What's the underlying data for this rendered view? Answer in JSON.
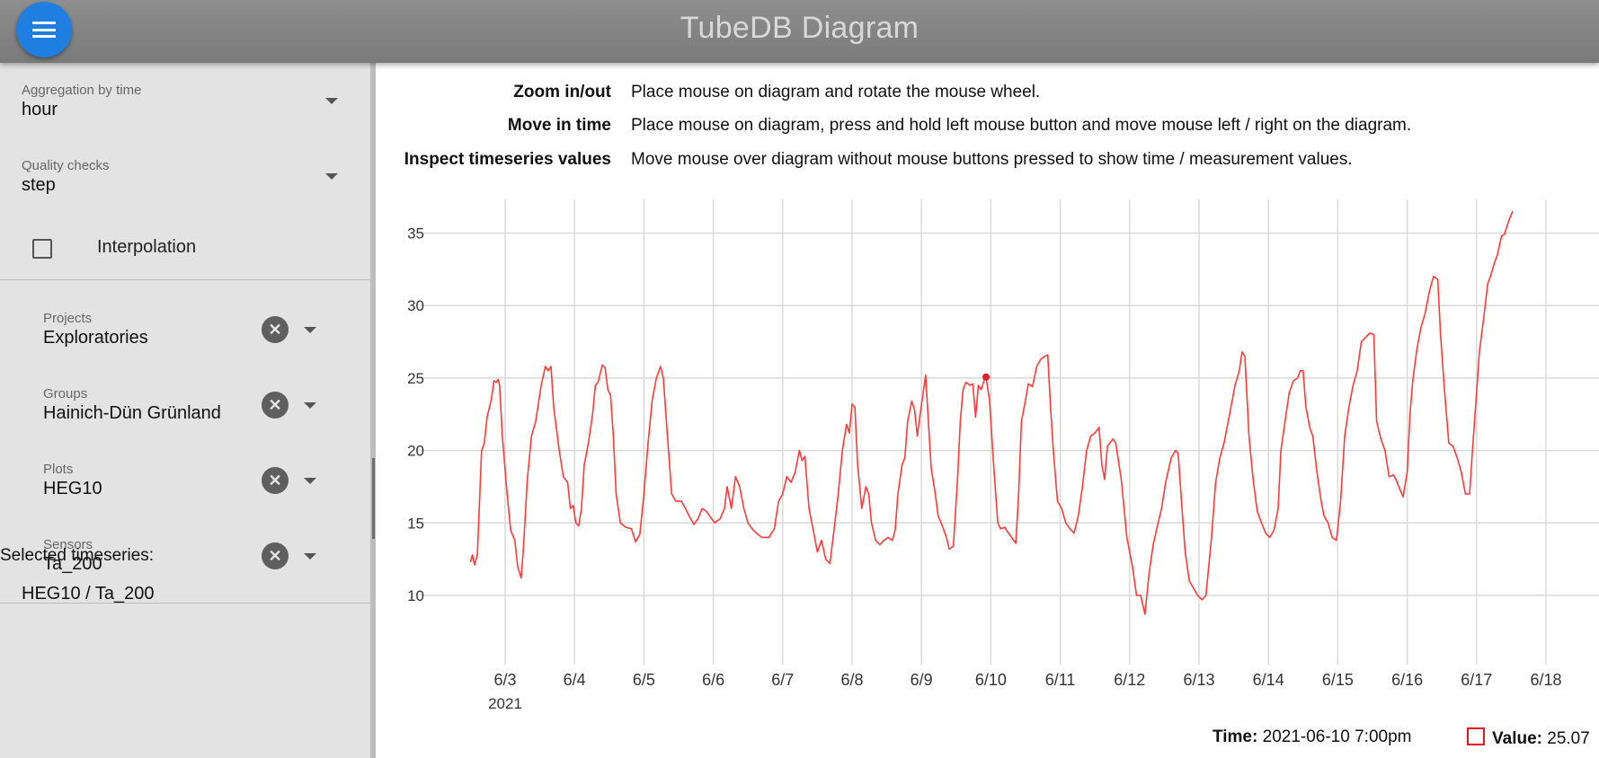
{
  "header": {
    "title": "TubeDB Diagram"
  },
  "sidebar": {
    "aggregation": {
      "label": "Aggregation by time",
      "value": "hour"
    },
    "quality": {
      "label": "Quality checks",
      "value": "step"
    },
    "interpolation": {
      "label": "Interpolation",
      "checked": false
    },
    "projects": {
      "label": "Projects",
      "value": "Exploratories"
    },
    "groups": {
      "label": "Groups",
      "value": "Hainich-Dün Grünland"
    },
    "plots": {
      "label": "Plots",
      "value": "HEG10"
    },
    "sensors": {
      "label": "Sensors",
      "value": "Ta_200"
    },
    "selected_title": "Selected timeseries:",
    "selected_items": [
      "HEG10 / Ta_200"
    ]
  },
  "help": [
    {
      "key": "Zoom in/out",
      "value": "Place mouse on diagram and rotate the mouse wheel."
    },
    {
      "key": "Move in time",
      "value": "Place mouse on diagram, press and hold left mouse button and move mouse left / right on the diagram."
    },
    {
      "key": "Inspect timeseries values",
      "value": "Move mouse over diagram without mouse buttons pressed to show time / measurement values."
    }
  ],
  "status": {
    "time_label": "Time:",
    "time_value": "2021-06-10 7:00pm",
    "value_label": "Value:",
    "value_value": "25.07"
  },
  "colors": {
    "accent": "#1e7fe0",
    "series": "#ff3b3b",
    "header": "#808080",
    "sidebar": "#e3e3e3"
  },
  "chart_data": {
    "type": "line",
    "x_labels": [
      "6/3",
      "6/4",
      "6/5",
      "6/6",
      "6/7",
      "6/8",
      "6/9",
      "6/10",
      "6/11",
      "6/12",
      "6/13",
      "6/14",
      "6/15",
      "6/16",
      "6/17",
      "6/18"
    ],
    "year_label": "2021",
    "y_ticks": [
      10,
      15,
      20,
      25,
      30,
      35
    ],
    "ylim": [
      6,
      37
    ],
    "xlim_days": [
      2.4,
      18.8
    ],
    "grid": true,
    "series": [
      {
        "values": [
          [
            2.5,
            12.3
          ],
          [
            2.53,
            12.8
          ],
          [
            2.56,
            12.1
          ],
          [
            2.6,
            12.8
          ],
          [
            2.66,
            20.0
          ],
          [
            2.7,
            20.5
          ],
          [
            2.74,
            22.3
          ],
          [
            2.8,
            23.5
          ],
          [
            2.84,
            24.8
          ],
          [
            2.87,
            24.7
          ],
          [
            2.9,
            24.9
          ],
          [
            2.92,
            24.5
          ],
          [
            2.96,
            21.0
          ],
          [
            3.02,
            17.5
          ],
          [
            3.08,
            14.5
          ],
          [
            3.14,
            13.8
          ],
          [
            3.18,
            12.0
          ],
          [
            3.23,
            11.2
          ],
          [
            3.26,
            13.0
          ],
          [
            3.32,
            18.0
          ],
          [
            3.38,
            21.0
          ],
          [
            3.44,
            22.0
          ],
          [
            3.52,
            24.5
          ],
          [
            3.58,
            25.8
          ],
          [
            3.62,
            25.5
          ],
          [
            3.66,
            25.8
          ],
          [
            3.7,
            23.0
          ],
          [
            3.78,
            20.0
          ],
          [
            3.84,
            18.2
          ],
          [
            3.9,
            17.8
          ],
          [
            3.94,
            16.0
          ],
          [
            3.98,
            16.2
          ],
          [
            4.02,
            15.0
          ],
          [
            4.06,
            14.8
          ],
          [
            4.1,
            16.0
          ],
          [
            4.14,
            19.0
          ],
          [
            4.2,
            20.5
          ],
          [
            4.26,
            22.5
          ],
          [
            4.3,
            24.5
          ],
          [
            4.34,
            24.7
          ],
          [
            4.4,
            25.9
          ],
          [
            4.44,
            25.7
          ],
          [
            4.48,
            24.2
          ],
          [
            4.52,
            23.8
          ],
          [
            4.56,
            21.0
          ],
          [
            4.6,
            17.0
          ],
          [
            4.66,
            15.0
          ],
          [
            4.74,
            14.7
          ],
          [
            4.82,
            14.6
          ],
          [
            4.88,
            13.7
          ],
          [
            4.94,
            14.2
          ],
          [
            5.0,
            17.0
          ],
          [
            5.06,
            20.5
          ],
          [
            5.12,
            23.5
          ],
          [
            5.18,
            25.0
          ],
          [
            5.24,
            25.8
          ],
          [
            5.28,
            25.0
          ],
          [
            5.34,
            21.0
          ],
          [
            5.4,
            17.0
          ],
          [
            5.46,
            16.5
          ],
          [
            5.54,
            16.5
          ],
          [
            5.6,
            16.0
          ],
          [
            5.66,
            15.4
          ],
          [
            5.72,
            14.9
          ],
          [
            5.78,
            15.3
          ],
          [
            5.84,
            16.0
          ],
          [
            5.9,
            15.8
          ],
          [
            5.96,
            15.4
          ],
          [
            6.02,
            15.0
          ],
          [
            6.1,
            15.3
          ],
          [
            6.16,
            16.0
          ],
          [
            6.2,
            17.5
          ],
          [
            6.26,
            16.0
          ],
          [
            6.32,
            18.2
          ],
          [
            6.38,
            17.5
          ],
          [
            6.44,
            16.0
          ],
          [
            6.5,
            15.0
          ],
          [
            6.56,
            14.6
          ],
          [
            6.62,
            14.3
          ],
          [
            6.7,
            14.0
          ],
          [
            6.8,
            14.0
          ],
          [
            6.88,
            14.6
          ],
          [
            6.94,
            16.5
          ],
          [
            7.0,
            17.0
          ],
          [
            7.06,
            18.2
          ],
          [
            7.12,
            17.8
          ],
          [
            7.18,
            18.5
          ],
          [
            7.24,
            20.0
          ],
          [
            7.28,
            19.3
          ],
          [
            7.32,
            19.6
          ],
          [
            7.38,
            16.0
          ],
          [
            7.44,
            14.5
          ],
          [
            7.5,
            13.0
          ],
          [
            7.56,
            13.8
          ],
          [
            7.62,
            12.5
          ],
          [
            7.68,
            12.2
          ],
          [
            7.74,
            14.5
          ],
          [
            7.8,
            17.0
          ],
          [
            7.86,
            20.0
          ],
          [
            7.92,
            21.8
          ],
          [
            7.96,
            21.2
          ],
          [
            8.0,
            23.2
          ],
          [
            8.04,
            23.0
          ],
          [
            8.08,
            19.0
          ],
          [
            8.14,
            16.0
          ],
          [
            8.2,
            17.5
          ],
          [
            8.24,
            17.0
          ],
          [
            8.28,
            15.0
          ],
          [
            8.34,
            13.8
          ],
          [
            8.4,
            13.5
          ],
          [
            8.46,
            13.8
          ],
          [
            8.52,
            14.0
          ],
          [
            8.58,
            13.8
          ],
          [
            8.62,
            14.5
          ],
          [
            8.66,
            17.0
          ],
          [
            8.72,
            19.0
          ],
          [
            8.76,
            19.5
          ],
          [
            8.8,
            22.0
          ],
          [
            8.86,
            23.4
          ],
          [
            8.9,
            22.8
          ],
          [
            8.94,
            21.0
          ],
          [
            8.98,
            22.5
          ],
          [
            9.02,
            23.8
          ],
          [
            9.06,
            25.2
          ],
          [
            9.1,
            22.0
          ],
          [
            9.14,
            18.8
          ],
          [
            9.2,
            17.0
          ],
          [
            9.24,
            15.5
          ],
          [
            9.3,
            14.8
          ],
          [
            9.36,
            14.0
          ],
          [
            9.4,
            13.2
          ],
          [
            9.46,
            13.4
          ],
          [
            9.52,
            18.0
          ],
          [
            9.56,
            22.0
          ],
          [
            9.6,
            24.2
          ],
          [
            9.64,
            24.7
          ],
          [
            9.7,
            24.5
          ],
          [
            9.74,
            24.6
          ],
          [
            9.78,
            22.3
          ],
          [
            9.82,
            24.5
          ],
          [
            9.86,
            24.2
          ],
          [
            9.9,
            24.8
          ],
          [
            9.93,
            25.07
          ],
          [
            9.98,
            23.5
          ],
          [
            10.04,
            19.0
          ],
          [
            10.1,
            15.0
          ],
          [
            10.14,
            14.6
          ],
          [
            10.2,
            14.7
          ],
          [
            10.24,
            14.4
          ],
          [
            10.3,
            14.0
          ],
          [
            10.36,
            13.6
          ],
          [
            10.4,
            17.0
          ],
          [
            10.44,
            22.0
          ],
          [
            10.5,
            23.5
          ],
          [
            10.54,
            24.6
          ],
          [
            10.6,
            24.4
          ],
          [
            10.66,
            25.8
          ],
          [
            10.72,
            26.3
          ],
          [
            10.78,
            26.5
          ],
          [
            10.82,
            26.6
          ],
          [
            10.86,
            23.0
          ],
          [
            10.9,
            20.0
          ],
          [
            10.96,
            16.5
          ],
          [
            11.02,
            16.0
          ],
          [
            11.08,
            15.0
          ],
          [
            11.14,
            14.6
          ],
          [
            11.2,
            14.3
          ],
          [
            11.26,
            15.5
          ],
          [
            11.32,
            17.5
          ],
          [
            11.38,
            20.0
          ],
          [
            11.44,
            21.0
          ],
          [
            11.5,
            21.2
          ],
          [
            11.56,
            21.6
          ],
          [
            11.6,
            19.0
          ],
          [
            11.64,
            18.0
          ],
          [
            11.68,
            20.3
          ],
          [
            11.76,
            20.8
          ],
          [
            11.8,
            20.5
          ],
          [
            11.88,
            18.0
          ],
          [
            11.96,
            14.0
          ],
          [
            12.04,
            12.0
          ],
          [
            12.1,
            10.0
          ],
          [
            12.16,
            10.0
          ],
          [
            12.22,
            8.7
          ],
          [
            12.28,
            11.5
          ],
          [
            12.34,
            13.5
          ],
          [
            12.4,
            14.8
          ],
          [
            12.46,
            16.0
          ],
          [
            12.52,
            17.8
          ],
          [
            12.6,
            19.5
          ],
          [
            12.66,
            20.0
          ],
          [
            12.7,
            19.8
          ],
          [
            12.74,
            17.0
          ],
          [
            12.8,
            13.0
          ],
          [
            12.86,
            11.0
          ],
          [
            12.92,
            10.5
          ],
          [
            12.98,
            10.0
          ],
          [
            13.04,
            9.7
          ],
          [
            13.1,
            10.0
          ],
          [
            13.18,
            14.0
          ],
          [
            13.24,
            17.8
          ],
          [
            13.3,
            19.5
          ],
          [
            13.36,
            20.5
          ],
          [
            13.44,
            22.5
          ],
          [
            13.52,
            24.5
          ],
          [
            13.58,
            25.5
          ],
          [
            13.62,
            26.8
          ],
          [
            13.66,
            26.5
          ],
          [
            13.72,
            21.0
          ],
          [
            13.78,
            18.0
          ],
          [
            13.84,
            15.8
          ],
          [
            13.9,
            15.0
          ],
          [
            13.96,
            14.3
          ],
          [
            14.02,
            14.0
          ],
          [
            14.08,
            14.5
          ],
          [
            14.14,
            16.0
          ],
          [
            14.18,
            20.0
          ],
          [
            14.24,
            22.0
          ],
          [
            14.3,
            24.0
          ],
          [
            14.36,
            24.8
          ],
          [
            14.42,
            25.0
          ],
          [
            14.46,
            25.5
          ],
          [
            14.5,
            25.5
          ],
          [
            14.54,
            23.0
          ],
          [
            14.6,
            21.5
          ],
          [
            14.64,
            21.0
          ],
          [
            14.7,
            18.5
          ],
          [
            14.76,
            16.5
          ],
          [
            14.8,
            15.5
          ],
          [
            14.86,
            15.0
          ],
          [
            14.92,
            14.0
          ],
          [
            14.98,
            13.8
          ],
          [
            15.04,
            16.5
          ],
          [
            15.1,
            21.0
          ],
          [
            15.16,
            23.0
          ],
          [
            15.22,
            24.5
          ],
          [
            15.28,
            25.5
          ],
          [
            15.34,
            27.5
          ],
          [
            15.4,
            27.8
          ],
          [
            15.46,
            28.1
          ],
          [
            15.52,
            28.0
          ],
          [
            15.56,
            22.0
          ],
          [
            15.62,
            20.8
          ],
          [
            15.68,
            20.0
          ],
          [
            15.74,
            18.2
          ],
          [
            15.8,
            18.3
          ],
          [
            15.84,
            18.0
          ],
          [
            15.88,
            17.5
          ],
          [
            15.94,
            16.8
          ],
          [
            16.0,
            18.5
          ],
          [
            16.04,
            22.5
          ],
          [
            16.08,
            24.8
          ],
          [
            16.14,
            27.0
          ],
          [
            16.2,
            28.5
          ],
          [
            16.26,
            29.5
          ],
          [
            16.32,
            31.0
          ],
          [
            16.38,
            32.0
          ],
          [
            16.44,
            31.8
          ],
          [
            16.48,
            28.0
          ],
          [
            16.54,
            24.0
          ],
          [
            16.6,
            20.5
          ],
          [
            16.66,
            20.3
          ],
          [
            16.72,
            19.5
          ],
          [
            16.78,
            18.5
          ],
          [
            16.84,
            17.0
          ],
          [
            16.9,
            17.0
          ],
          [
            16.94,
            20.0
          ],
          [
            17.0,
            24.0
          ],
          [
            17.04,
            26.8
          ],
          [
            17.1,
            29.0
          ],
          [
            17.16,
            31.5
          ],
          [
            17.2,
            32.0
          ],
          [
            17.26,
            33.0
          ],
          [
            17.3,
            33.5
          ],
          [
            17.36,
            34.8
          ],
          [
            17.4,
            34.9
          ],
          [
            17.46,
            35.8
          ],
          [
            17.52,
            36.5
          ]
        ]
      }
    ]
  }
}
